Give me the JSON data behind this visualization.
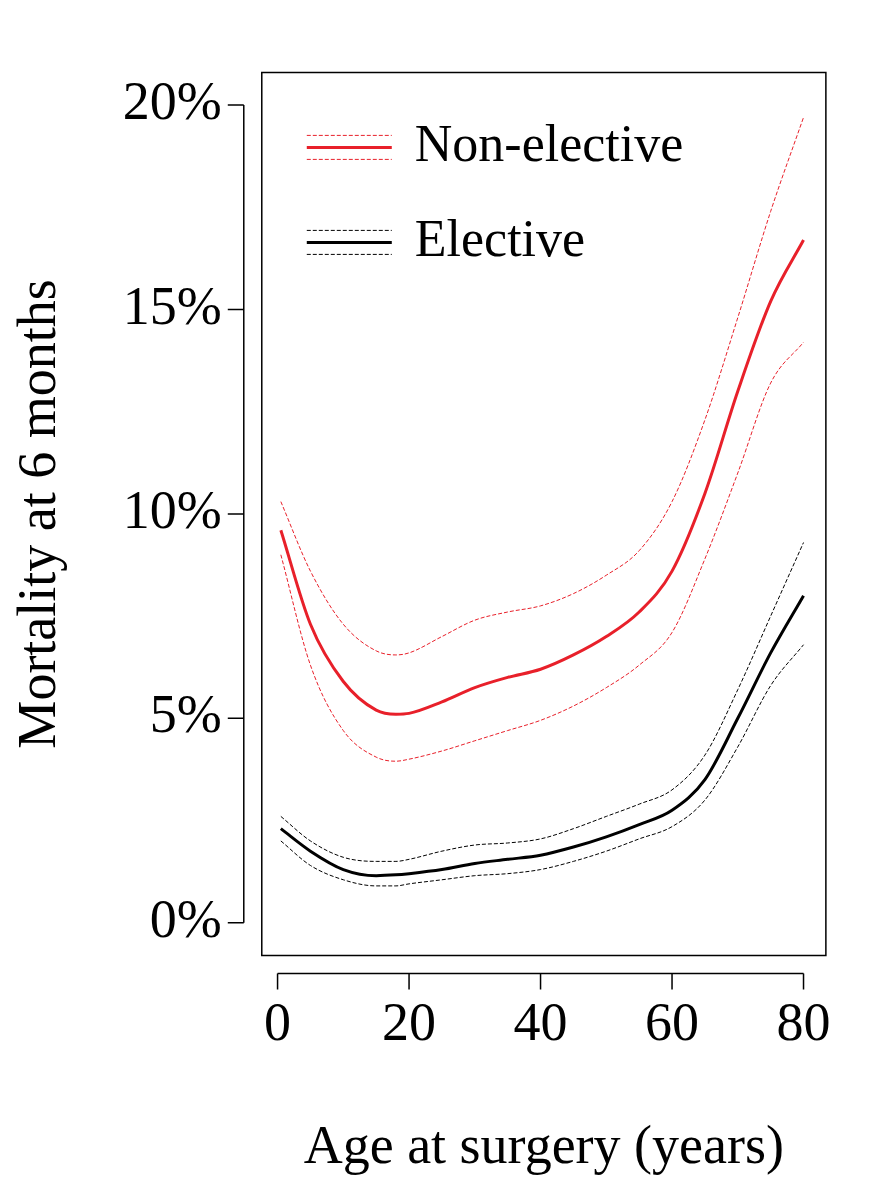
{
  "chart_data": {
    "type": "line",
    "xlabel": "Age at surgery (years)",
    "ylabel": "Mortality at 6 months",
    "x": [
      0.5,
      5,
      10,
      15,
      18,
      20,
      25,
      30,
      35,
      40,
      45,
      50,
      55,
      60,
      65,
      70,
      75,
      80
    ],
    "xlim": [
      -2.4,
      83.4
    ],
    "ylim": [
      -0.8,
      20.8
    ],
    "xticks": [
      0,
      20,
      40,
      60,
      80
    ],
    "yticks": [
      {
        "value": 0,
        "label": "0%"
      },
      {
        "value": 5,
        "label": "5%"
      },
      {
        "value": 10,
        "label": "10%"
      },
      {
        "value": 15,
        "label": "15%"
      },
      {
        "value": 20,
        "label": "20%"
      }
    ],
    "grid": false,
    "legend": "top left",
    "series": [
      {
        "name": "Non-elective",
        "color": "#e8202a",
        "line_style": "solid",
        "values": [
          9.6,
          7.3,
          5.9,
          5.2,
          5.1,
          5.12,
          5.4,
          5.75,
          6.0,
          6.2,
          6.55,
          7.0,
          7.6,
          8.6,
          10.5,
          13.0,
          15.2,
          16.7
        ]
      },
      {
        "color": "#e8202a",
        "line_style": "dashed",
        "values": [
          10.3,
          8.6,
          7.3,
          6.65,
          6.55,
          6.6,
          7.0,
          7.4,
          7.6,
          7.75,
          8.05,
          8.5,
          9.1,
          10.3,
          12.3,
          14.8,
          17.4,
          19.7
        ]
      },
      {
        "color": "#e8202a",
        "line_style": "dashed",
        "values": [
          9.0,
          6.3,
          4.7,
          4.05,
          3.95,
          4.0,
          4.2,
          4.45,
          4.7,
          4.95,
          5.3,
          5.75,
          6.3,
          7.1,
          8.9,
          11.0,
          13.2,
          14.2
        ]
      },
      {
        "name": "Elective",
        "color": "#000000",
        "line_style": "solid",
        "values": [
          2.3,
          1.75,
          1.3,
          1.15,
          1.17,
          1.2,
          1.3,
          1.45,
          1.55,
          1.65,
          1.85,
          2.1,
          2.4,
          2.75,
          3.5,
          5.0,
          6.6,
          8.0
        ]
      },
      {
        "color": "#000000",
        "line_style": "dashed",
        "values": [
          2.6,
          2.0,
          1.6,
          1.5,
          1.5,
          1.55,
          1.75,
          1.9,
          1.95,
          2.05,
          2.3,
          2.6,
          2.9,
          3.25,
          4.1,
          5.7,
          7.5,
          9.3
        ]
      },
      {
        "color": "#000000",
        "line_style": "dashed",
        "values": [
          2.0,
          1.4,
          1.05,
          0.9,
          0.9,
          0.95,
          1.05,
          1.15,
          1.2,
          1.3,
          1.5,
          1.75,
          2.05,
          2.35,
          3.0,
          4.3,
          5.8,
          6.8
        ]
      }
    ]
  }
}
